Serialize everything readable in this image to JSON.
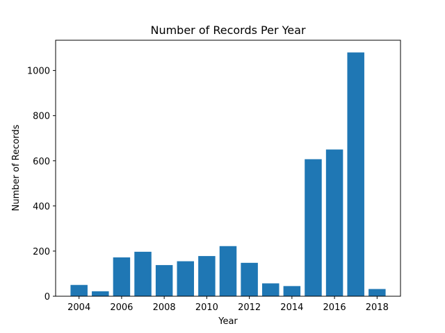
{
  "chart_data": {
    "type": "bar",
    "title": "Number of Records Per Year",
    "xlabel": "Year",
    "ylabel": "Number of Records",
    "x": [
      2004,
      2005,
      2006,
      2007,
      2008,
      2009,
      2010,
      2011,
      2012,
      2013,
      2014,
      2015,
      2016,
      2017,
      2018
    ],
    "values": [
      50,
      22,
      172,
      197,
      138,
      155,
      178,
      222,
      148,
      57,
      45,
      607,
      650,
      1080,
      32
    ],
    "xlim": [
      2002.9,
      2019.1
    ],
    "ylim": [
      0,
      1134
    ],
    "xticks": [
      2004,
      2006,
      2008,
      2010,
      2012,
      2014,
      2016,
      2018
    ],
    "yticks": [
      0,
      200,
      400,
      600,
      800,
      1000
    ],
    "bar_color": "#1f77b4",
    "grid": false,
    "legend": "none"
  }
}
